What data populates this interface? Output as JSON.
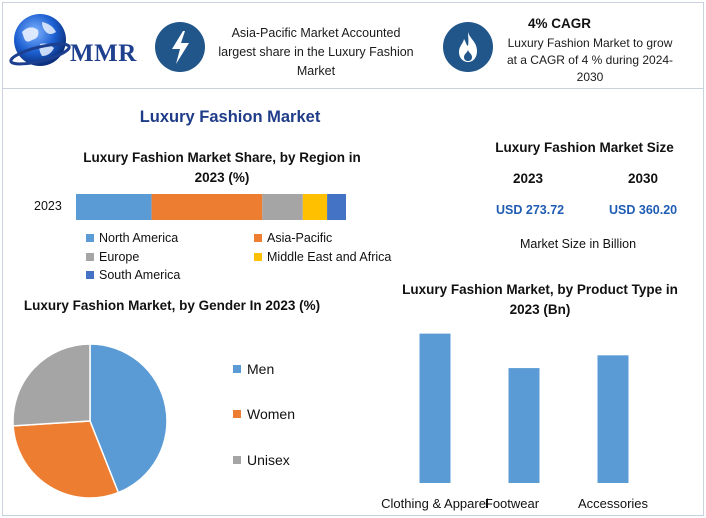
{
  "brand": {
    "name": "MMR"
  },
  "header": {
    "fact_1": "Asia-Pacific Market Accounted largest share in the Luxury Fashion Market",
    "fact_2_title": "4% CAGR",
    "fact_2_body": "Luxury Fashion Market to grow at a CAGR of 4 % during 2024-2030"
  },
  "main_title": "Luxury Fashion Market",
  "market_size": {
    "title": "Luxury Fashion Market Size",
    "years": [
      "2023",
      "2030"
    ],
    "values": [
      "USD 273.72",
      "USD 360.20"
    ],
    "note": "Market Size in Billion"
  },
  "colors": {
    "blue": "#5b9bd5",
    "orange": "#ed7d31",
    "gray": "#a5a5a5",
    "yellow": "#ffc000",
    "dark_blue": "#4472c4"
  },
  "icons": [
    "lightning-icon",
    "flame-icon",
    "globe-icon"
  ],
  "chart_data": [
    {
      "type": "bar",
      "stacked": true,
      "orientation": "horizontal",
      "title": "Luxury Fashion Market Share, by Region in 2023 (%)",
      "categories": [
        "2023"
      ],
      "xlim": [
        0,
        100
      ],
      "series": [
        {
          "name": "North America",
          "values": [
            28
          ],
          "color": "#5b9bd5"
        },
        {
          "name": "Asia-Pacific",
          "values": [
            41
          ],
          "color": "#ed7d31"
        },
        {
          "name": "Europe",
          "values": [
            15
          ],
          "color": "#a5a5a5"
        },
        {
          "name": "Middle East and Africa",
          "values": [
            9
          ],
          "color": "#ffc000"
        },
        {
          "name": "South America",
          "values": [
            7
          ],
          "color": "#4472c4"
        }
      ],
      "legend": "bottom"
    },
    {
      "type": "pie",
      "title": "Luxury Fashion Market, by Gender In 2023 (%)",
      "labels": [
        "Men",
        "Women",
        "Unisex"
      ],
      "values": [
        44,
        30,
        26
      ],
      "colors": [
        "#5b9bd5",
        "#ed7d31",
        "#a5a5a5"
      ],
      "legend": "right"
    },
    {
      "type": "bar",
      "title": "Luxury Fashion Market, by Product Type in 2023 (Bn)",
      "categories": [
        "Clothing & Apparel",
        "Footwear",
        "Accessories"
      ],
      "values": [
        117,
        90,
        100
      ],
      "color": "#5b9bd5",
      "ylim": [
        0,
        125
      ],
      "grid": false
    }
  ]
}
